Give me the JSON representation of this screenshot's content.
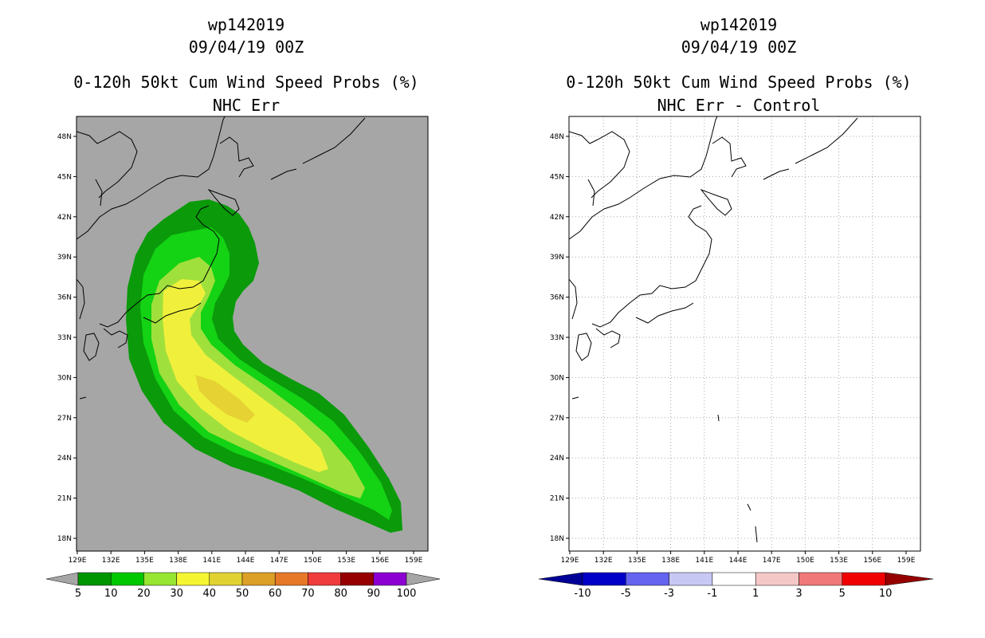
{
  "map_left": {
    "title_line1": "wp142019",
    "title_line2": "09/04/19 00Z",
    "title_line3": "0-120h 50kt Cum Wind Speed Probs (%)",
    "title_line4": "NHC Err",
    "background_color": "#a6a6a6",
    "contour_colors": [
      "#0a9a0a",
      "#14d214",
      "#a0e03c",
      "#f0f03c",
      "#e6d232"
    ],
    "colorbar_labels": [
      "5",
      "10",
      "20",
      "30",
      "40",
      "50",
      "60",
      "70",
      "80",
      "90",
      "100"
    ],
    "colorbar_colors": [
      "#009600",
      "#00c800",
      "#96e632",
      "#f5f532",
      "#e1d232",
      "#dca028",
      "#e67828",
      "#f03c3c",
      "#960000",
      "#8c00d2"
    ]
  },
  "map_right": {
    "title_line1": "wp142019",
    "title_line2": "09/04/19 00Z",
    "title_line3": "0-120h 50kt Cum Wind Speed Probs (%)",
    "title_line4": "NHC Err - Control",
    "background_color": "#ffffff",
    "colorbar_labels": [
      "-10",
      "-5",
      "-3",
      "-1",
      "1",
      "3",
      "5",
      "10"
    ],
    "colorbar_colors": [
      "#0000c8",
      "#6464f0",
      "#c8c8f5",
      "#ffffff",
      "#f5c8c8",
      "#f07878",
      "#f00000"
    ],
    "colorbar_end_left": "#000096",
    "colorbar_end_right": "#960000"
  },
  "lon_ticks": [
    "129E",
    "132E",
    "135E",
    "138E",
    "141E",
    "144E",
    "147E",
    "150E",
    "153E",
    "156E",
    "159E"
  ],
  "lat_ticks": [
    "48N",
    "45N",
    "42N",
    "39N",
    "36N",
    "33N",
    "30N",
    "27N",
    "24N",
    "21N",
    "18N"
  ]
}
